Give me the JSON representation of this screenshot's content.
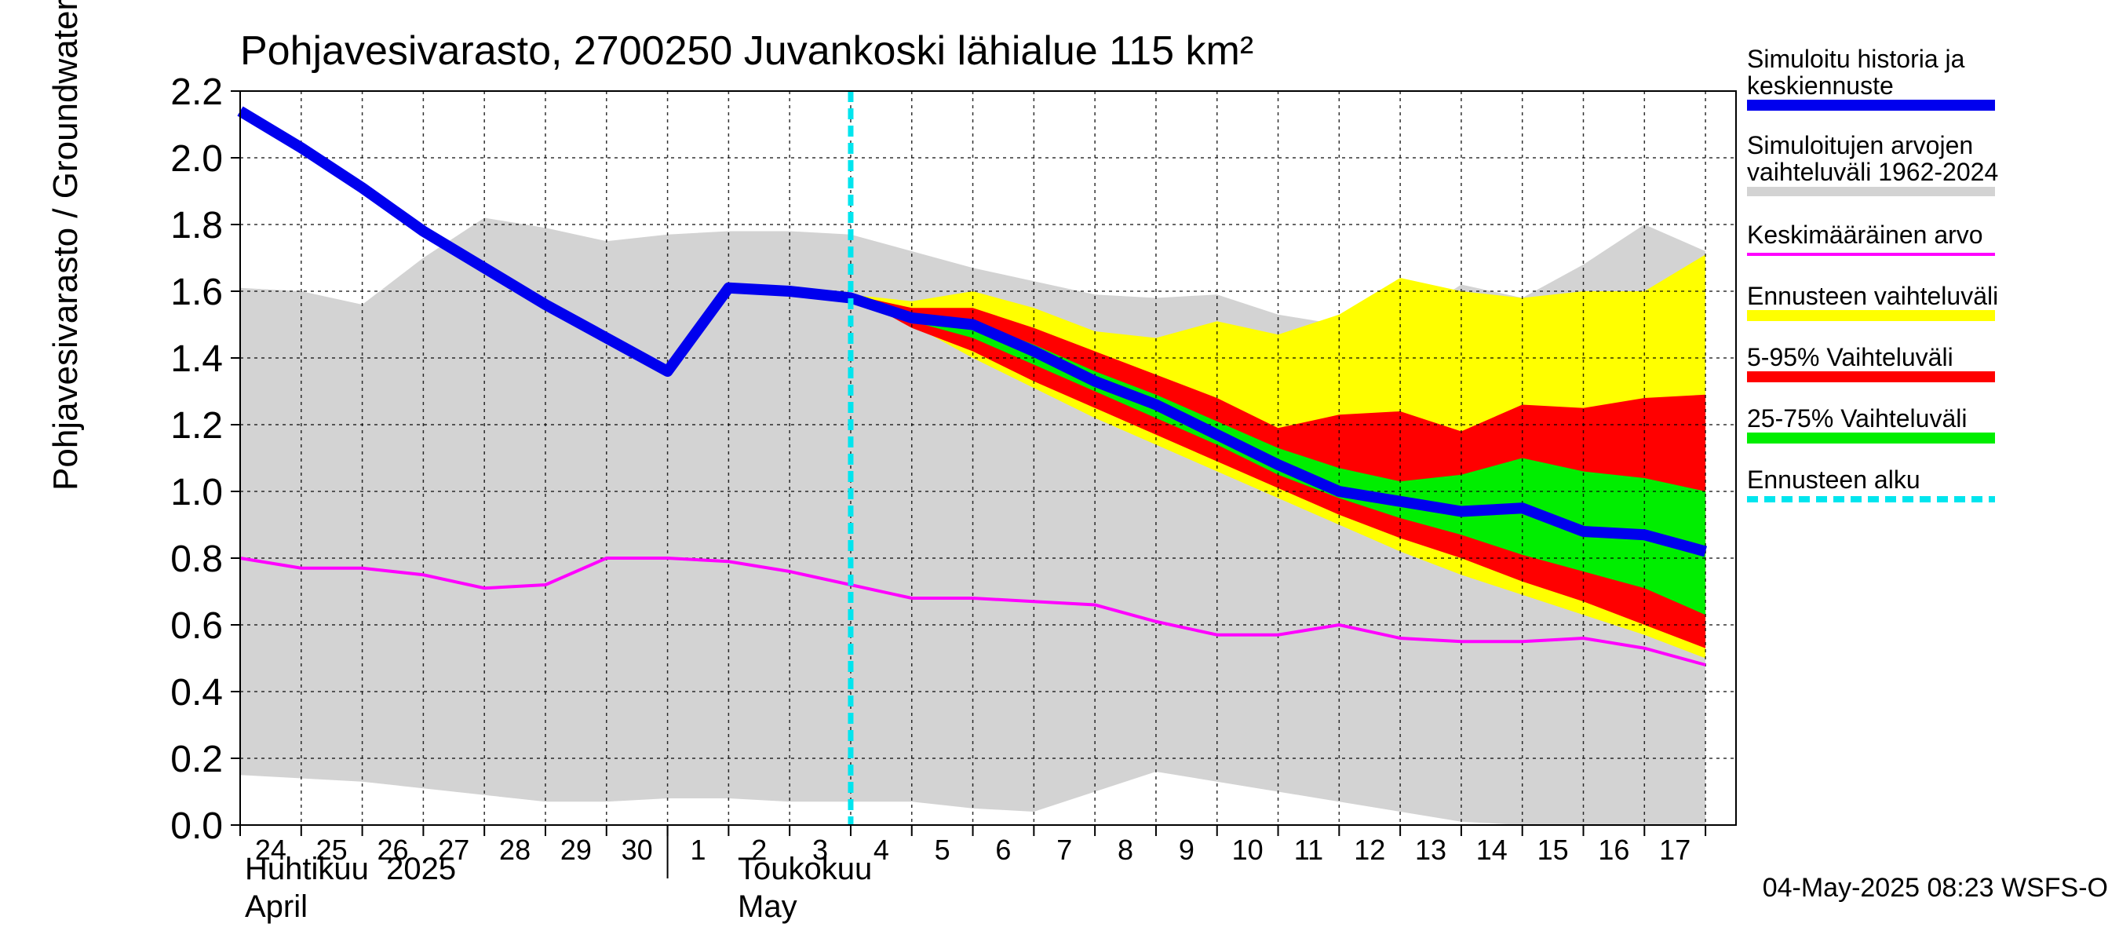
{
  "chart_data": {
    "type": "area",
    "title": "Pohjavesivarasto, 2700250 Juvankoski lähialue 115 km²",
    "ylabel": "Pohjavesivarasto / Groundwater storage   mm",
    "ylim": [
      0,
      2.2
    ],
    "yticks": [
      "0.0",
      "0.2",
      "0.4",
      "0.6",
      "0.8",
      "1.0",
      "1.2",
      "1.4",
      "1.6",
      "1.8",
      "2.0",
      "2.2"
    ],
    "grid": true,
    "legend_position": "right",
    "day_labels": [
      "24",
      "25",
      "26",
      "27",
      "28",
      "29",
      "30",
      "1",
      "2",
      "3",
      "4",
      "5",
      "6",
      "7",
      "8",
      "9",
      "10",
      "11",
      "12",
      "13",
      "14",
      "15",
      "16",
      "17"
    ],
    "month_labels": {
      "april_fi": "Huhtikuu  2025",
      "april_en": "April",
      "may_fi": "Toukokuu",
      "may_en": "May"
    },
    "forecast_start_day": 10.0,
    "footer": "04-May-2025 08:23 WSFS-O",
    "series": {
      "range_1962_2024": {
        "x": [
          0,
          1,
          2,
          3,
          4,
          5,
          6,
          7,
          8,
          9,
          10,
          11,
          12,
          13,
          14,
          15,
          16,
          17,
          18,
          19,
          20,
          21,
          22,
          23,
          24
        ],
        "upper": [
          1.61,
          1.6,
          1.56,
          1.7,
          1.82,
          1.79,
          1.75,
          1.77,
          1.78,
          1.78,
          1.77,
          1.72,
          1.67,
          1.63,
          1.59,
          1.58,
          1.59,
          1.53,
          1.5,
          1.5,
          1.62,
          1.58,
          1.68,
          1.8,
          1.72
        ],
        "lower": [
          0.15,
          0.14,
          0.13,
          0.11,
          0.09,
          0.07,
          0.07,
          0.08,
          0.08,
          0.07,
          0.07,
          0.07,
          0.05,
          0.04,
          0.1,
          0.16,
          0.13,
          0.1,
          0.07,
          0.04,
          0.01,
          0.0,
          0.0,
          0.0,
          0.0
        ]
      },
      "mean": {
        "x": [
          0,
          1,
          2,
          3,
          4,
          5,
          6,
          7,
          8,
          9,
          10,
          11,
          12,
          13,
          14,
          15,
          16,
          17,
          18,
          19,
          20,
          21,
          22,
          23,
          24
        ],
        "values": [
          0.8,
          0.77,
          0.77,
          0.75,
          0.71,
          0.72,
          0.8,
          0.8,
          0.79,
          0.76,
          0.72,
          0.68,
          0.68,
          0.67,
          0.66,
          0.61,
          0.57,
          0.57,
          0.6,
          0.56,
          0.55,
          0.55,
          0.56,
          0.53,
          0.48
        ]
      },
      "forecast_range": {
        "x": [
          10,
          11,
          12,
          13,
          14,
          15,
          16,
          17,
          18,
          19,
          20,
          21,
          22,
          23,
          24
        ],
        "upper": [
          1.59,
          1.57,
          1.6,
          1.55,
          1.48,
          1.46,
          1.51,
          1.47,
          1.53,
          1.64,
          1.6,
          1.58,
          1.6,
          1.6,
          1.71
        ],
        "lower": [
          1.59,
          1.5,
          1.4,
          1.31,
          1.22,
          1.14,
          1.06,
          0.98,
          0.9,
          0.82,
          0.75,
          0.69,
          0.63,
          0.57,
          0.5
        ]
      },
      "p5_95": {
        "x": [
          10,
          11,
          12,
          13,
          14,
          15,
          16,
          17,
          18,
          19,
          20,
          21,
          22,
          23,
          24
        ],
        "upper": [
          1.59,
          1.55,
          1.55,
          1.49,
          1.42,
          1.35,
          1.28,
          1.19,
          1.23,
          1.24,
          1.18,
          1.26,
          1.25,
          1.28,
          1.29
        ],
        "lower": [
          1.59,
          1.49,
          1.42,
          1.33,
          1.25,
          1.17,
          1.09,
          1.01,
          0.93,
          0.86,
          0.8,
          0.73,
          0.67,
          0.6,
          0.53
        ]
      },
      "p25_75": {
        "x": [
          10,
          11,
          12,
          13,
          14,
          15,
          16,
          17,
          18,
          19,
          20,
          21,
          22,
          23,
          24
        ],
        "upper": [
          1.59,
          1.53,
          1.51,
          1.44,
          1.36,
          1.29,
          1.21,
          1.13,
          1.07,
          1.03,
          1.05,
          1.1,
          1.06,
          1.04,
          1.0
        ],
        "lower": [
          1.59,
          1.51,
          1.46,
          1.38,
          1.3,
          1.22,
          1.14,
          1.05,
          0.98,
          0.92,
          0.87,
          0.81,
          0.76,
          0.71,
          0.63
        ]
      },
      "history_and_median_forecast": {
        "x": [
          0,
          1,
          2,
          3,
          4,
          5,
          6,
          7,
          8,
          9,
          10,
          11,
          12,
          13,
          14,
          15,
          16,
          17,
          18,
          19,
          20,
          21,
          22,
          23,
          24
        ],
        "values": [
          2.14,
          2.03,
          1.91,
          1.78,
          1.67,
          1.56,
          1.46,
          1.36,
          1.61,
          1.6,
          1.58,
          1.52,
          1.5,
          1.42,
          1.33,
          1.26,
          1.17,
          1.08,
          1.0,
          0.97,
          0.94,
          0.95,
          0.88,
          0.87,
          0.82
        ]
      }
    },
    "legend": [
      {
        "key": "history",
        "lines": [
          "Simuloitu historia ja",
          "keskiennuste"
        ],
        "color": "#0000ee",
        "style": "thick"
      },
      {
        "key": "range",
        "lines": [
          "Simuloitujen arvojen",
          "vaihteluväli 1962-2024"
        ],
        "color": "#d3d3d3",
        "style": "thin-band"
      },
      {
        "key": "mean",
        "lines": [
          "Keskimääräinen arvo"
        ],
        "color": "#ff00ff",
        "style": "line"
      },
      {
        "key": "forecast_range",
        "lines": [
          "Ennusteen vaihteluväli"
        ],
        "color": "#ffff00",
        "style": "band"
      },
      {
        "key": "p5_95",
        "lines": [
          "5-95% Vaihteluväli"
        ],
        "color": "#ff0000",
        "style": "band"
      },
      {
        "key": "p25_75",
        "lines": [
          "25-75% Vaihteluväli"
        ],
        "color": "#00ee00",
        "style": "band"
      },
      {
        "key": "forecast_start",
        "lines": [
          "Ennusteen alku"
        ],
        "color": "#00e5ee",
        "style": "dashed"
      }
    ],
    "colors": {
      "range": "#d3d3d3",
      "mean": "#ff00ff",
      "forecast_range": "#ffff00",
      "p5_95": "#ff0000",
      "p25_75": "#00ee00",
      "history": "#0000ee",
      "forecast_start": "#00e5ee",
      "grid": "#000000",
      "axis": "#000000"
    }
  }
}
